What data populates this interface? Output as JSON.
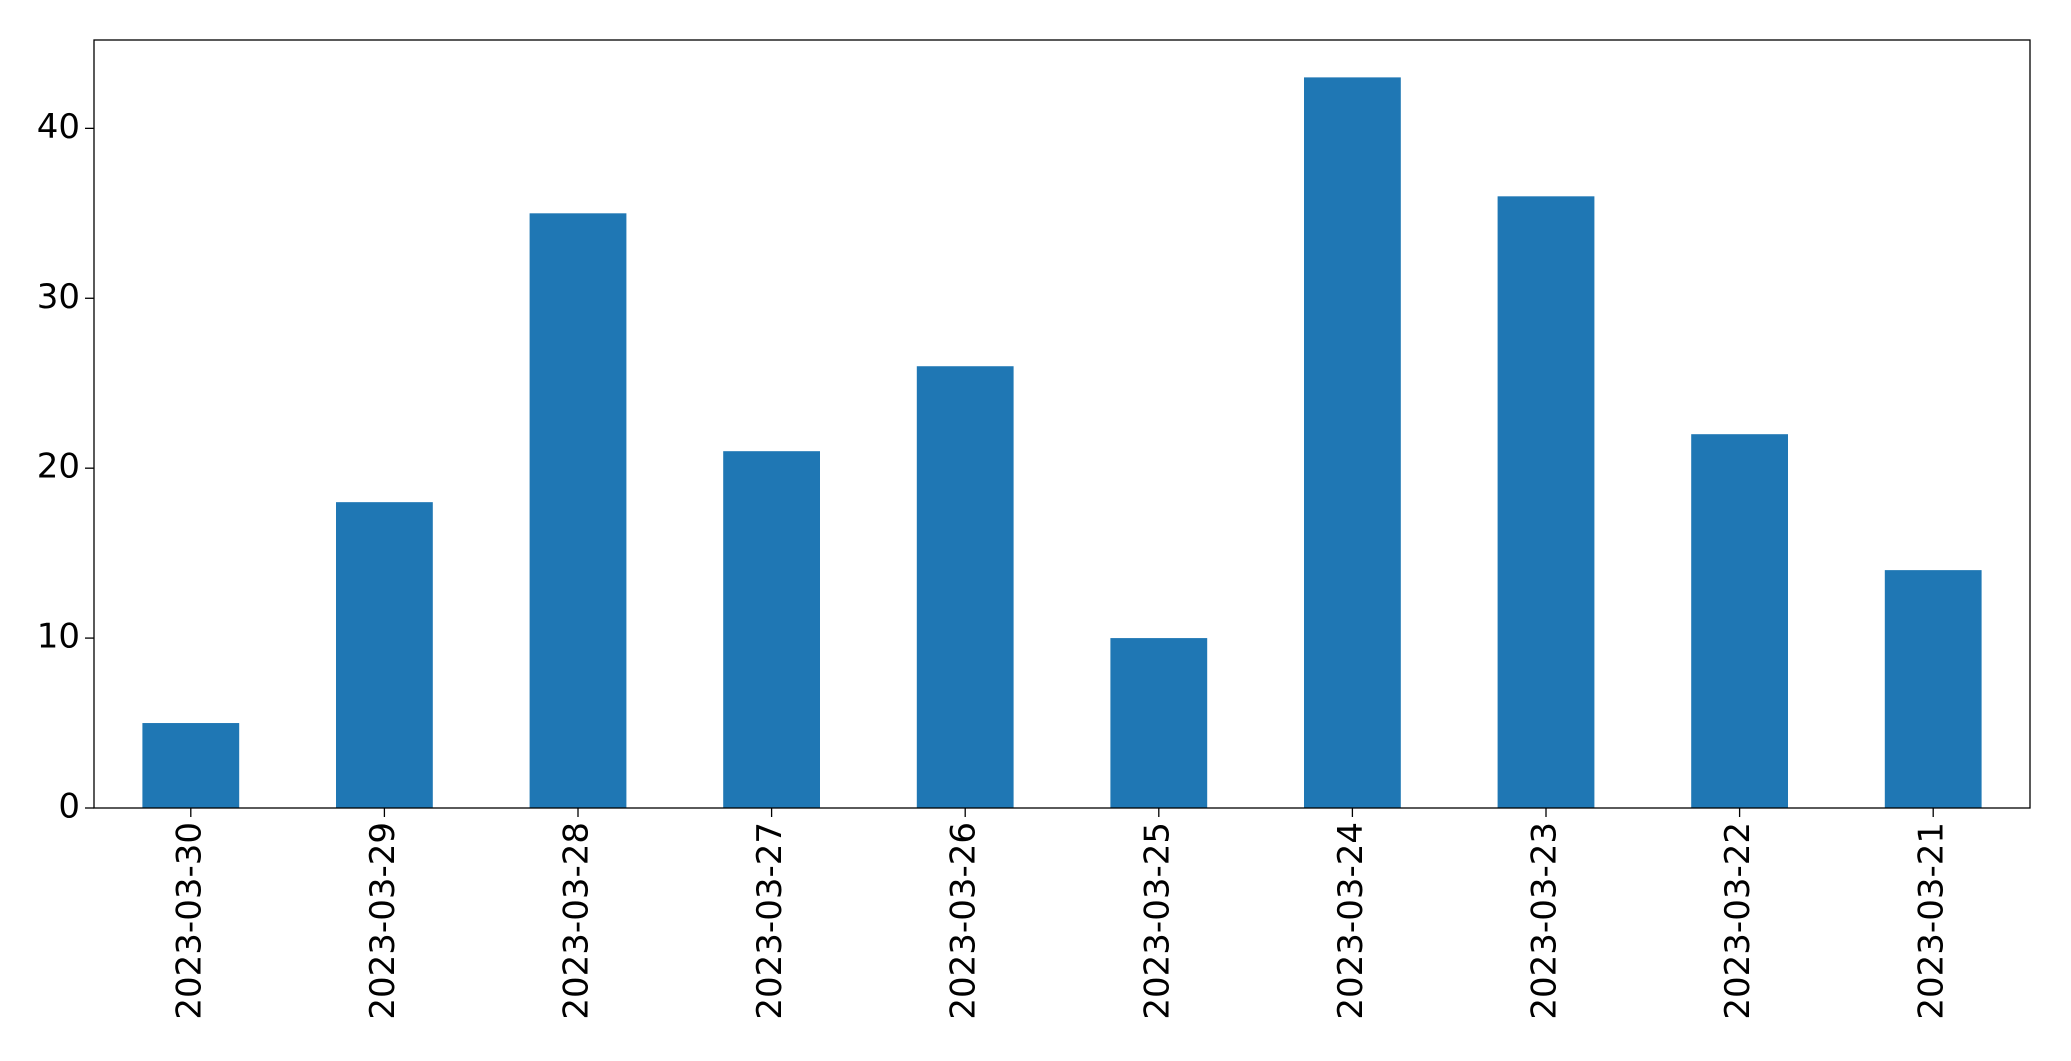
{
  "chart_data": {
    "type": "bar",
    "categories": [
      "2023-03-30",
      "2023-03-29",
      "2023-03-28",
      "2023-03-27",
      "2023-03-26",
      "2023-03-25",
      "2023-03-24",
      "2023-03-23",
      "2023-03-22",
      "2023-03-21"
    ],
    "values": [
      5,
      18,
      35,
      21,
      26,
      10,
      43,
      36,
      22,
      14
    ],
    "color": "#1f77b4",
    "ylim": [
      0,
      45.2
    ],
    "yticks": [
      0,
      10,
      20,
      30,
      40
    ],
    "grid": false
  }
}
